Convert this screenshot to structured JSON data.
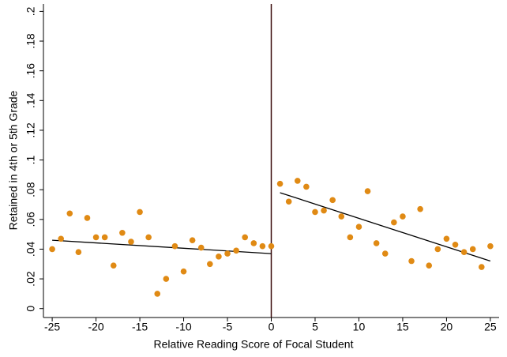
{
  "chart_data": {
    "type": "scatter",
    "x_label": "Relative Reading Score of Focal Student",
    "y_label": "Retained in 4th or 5th Grade",
    "x": [
      -25,
      -24,
      -23,
      -22,
      -21,
      -20,
      -19,
      -18,
      -17,
      -16,
      -15,
      -14,
      -13,
      -12,
      -11,
      -10,
      -9,
      -8,
      -7,
      -6,
      -5,
      -4,
      -3,
      -2,
      -1,
      0,
      1,
      2,
      3,
      4,
      5,
      6,
      7,
      8,
      9,
      10,
      11,
      12,
      13,
      14,
      15,
      16,
      17,
      18,
      19,
      20,
      21,
      22,
      23,
      24,
      25
    ],
    "series": [
      {
        "color": "#e08a14",
        "values": [
          0.04,
          0.047,
          0.064,
          0.038,
          0.061,
          0.048,
          0.048,
          0.029,
          0.051,
          0.045,
          0.065,
          0.048,
          0.01,
          0.02,
          0.042,
          0.025,
          0.046,
          0.041,
          0.03,
          0.035,
          0.037,
          0.039,
          0.048,
          0.044,
          0.042,
          0.042,
          0.084,
          0.072,
          0.086,
          0.082,
          0.065,
          0.066,
          0.073,
          0.062,
          0.048,
          0.055,
          0.079,
          0.044,
          0.037,
          0.058,
          0.062,
          0.032,
          0.067,
          0.029,
          0.04,
          0.047,
          0.043,
          0.038,
          0.04,
          0.028,
          0.042
        ]
      }
    ],
    "fit_lines": [
      {
        "color": "#000000",
        "x": [
          -25,
          0
        ],
        "values": [
          0.046,
          0.037
        ]
      },
      {
        "color": "#000000",
        "x": [
          1,
          25
        ],
        "values": [
          0.078,
          0.032
        ]
      }
    ],
    "cutoff": 0,
    "xlim": [
      -26,
      26
    ],
    "ylim": [
      -0.006,
      0.205
    ],
    "xticks": [
      -25,
      -20,
      -15,
      -10,
      -5,
      0,
      5,
      10,
      15,
      20,
      25
    ],
    "yticks": [
      0,
      {
        "value": 0.02,
        "label": ".02"
      },
      {
        "value": 0.04,
        "label": ".04"
      },
      {
        "value": 0.06,
        "label": ".06"
      },
      {
        "value": 0.08,
        "label": ".08"
      },
      {
        "value": 0.1,
        "label": ".1"
      },
      {
        "value": 0.12,
        "label": ".12"
      },
      {
        "value": 0.14,
        "label": ".14"
      },
      {
        "value": 0.16,
        "label": ".16"
      },
      {
        "value": 0.18,
        "label": ".18"
      },
      {
        "value": 0.2,
        "label": ".2"
      }
    ]
  }
}
